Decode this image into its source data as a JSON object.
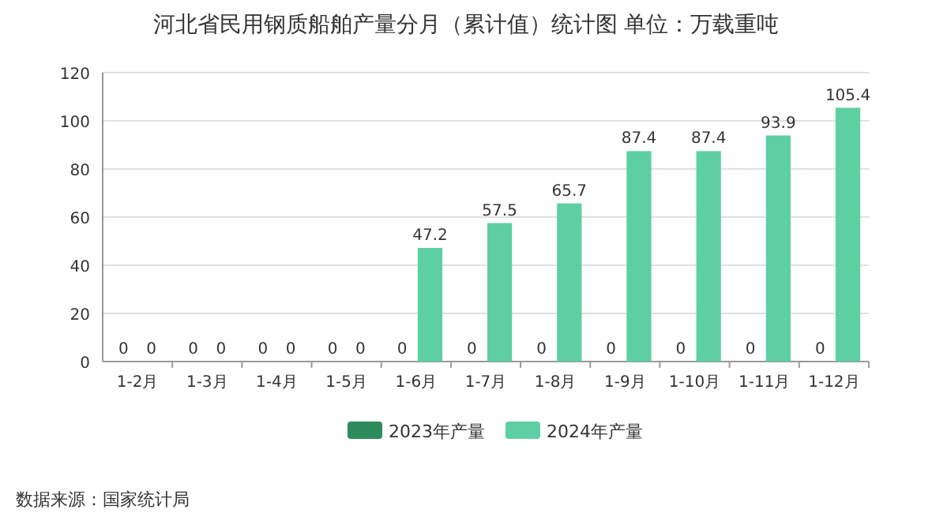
{
  "chart_data": {
    "type": "bar",
    "title": "河北省民用钢质船舶产量分月（累计值）统计图 单位：万载重吨",
    "categories": [
      "1-2月",
      "1-3月",
      "1-4月",
      "1-5月",
      "1-6月",
      "1-7月",
      "1-8月",
      "1-9月",
      "1-10月",
      "1-11月",
      "1-12月"
    ],
    "series": [
      {
        "name": "2023年产量",
        "color": "#2e8b5c",
        "values": [
          0,
          0,
          0,
          0,
          0,
          0,
          0,
          0,
          0,
          0,
          0
        ]
      },
      {
        "name": "2024年产量",
        "color": "#5ecfa2",
        "values": [
          0,
          0,
          0,
          0,
          47.2,
          57.5,
          65.7,
          87.4,
          87.4,
          93.9,
          105.4
        ]
      }
    ],
    "ylim": [
      0,
      120
    ],
    "yticks": [
      0,
      20,
      40,
      60,
      80,
      100,
      120
    ],
    "grid": "y",
    "legend": "bottom",
    "data_labels": true,
    "annotations": [
      "数据来源：国家统计局"
    ]
  }
}
